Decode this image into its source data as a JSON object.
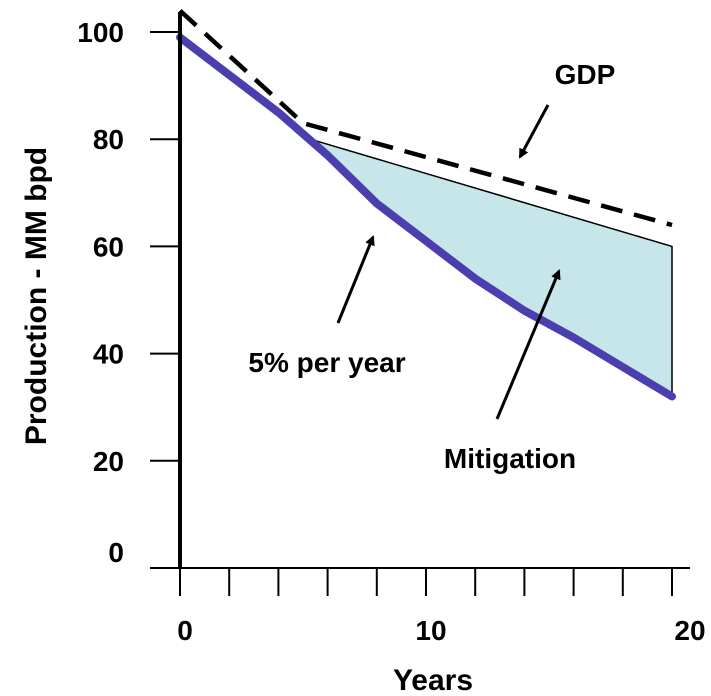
{
  "chart_data": {
    "type": "line",
    "xlabel": "Years",
    "ylabel": "Production - MM bpd",
    "xlim": [
      0,
      20
    ],
    "ylim": [
      0,
      100
    ],
    "x_ticks": [
      "0",
      "10",
      "20"
    ],
    "x_minor_tick_step": 2,
    "y_ticks": [
      "0",
      "20",
      "40",
      "60",
      "80",
      "100"
    ],
    "grid": false,
    "series": [
      {
        "name": "GDP",
        "style": "dashed",
        "color": "#000000",
        "points": [
          [
            0,
            104
          ],
          [
            5,
            83
          ],
          [
            20,
            64
          ]
        ]
      },
      {
        "name": "5% per year",
        "style": "solid",
        "color": "#4b3fb0",
        "points": [
          [
            0,
            99
          ],
          [
            2,
            92
          ],
          [
            4,
            85
          ],
          [
            6,
            77
          ],
          [
            8,
            68
          ],
          [
            10,
            61
          ],
          [
            12,
            54
          ],
          [
            14,
            48
          ],
          [
            16,
            43
          ],
          [
            18,
            37.5
          ],
          [
            20,
            32
          ]
        ]
      }
    ],
    "area": {
      "name": "Mitigation",
      "color": "#c6e6ea",
      "upper": [
        [
          5.3,
          80
        ],
        [
          20,
          60
        ]
      ]
    },
    "annotations": [
      {
        "text": "GDP",
        "target": "GDP"
      },
      {
        "text": "5% per year",
        "target": "5% per year"
      },
      {
        "text": "Mitigation",
        "target": "Mitigation"
      }
    ]
  }
}
